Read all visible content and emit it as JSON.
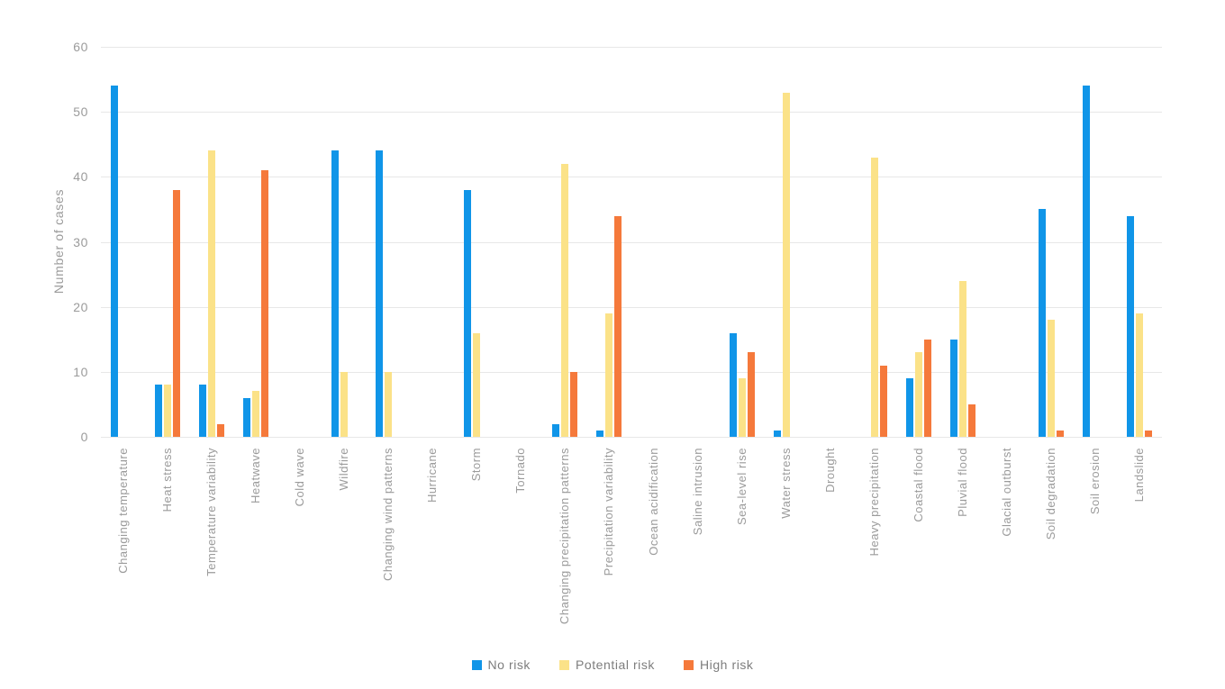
{
  "chart_data": {
    "type": "bar",
    "title": "",
    "xlabel": "",
    "ylabel": "Number of cases",
    "ylim": [
      0,
      60
    ],
    "yticks": [
      0,
      10,
      20,
      30,
      40,
      50,
      60
    ],
    "grid": true,
    "legend_position": "bottom",
    "categories": [
      "Changing temperature",
      "Heat stress",
      "Temperature variability",
      "Heatwave",
      "Cold wave",
      "Wildfire",
      "Changing wind patterns",
      "Hurricane",
      "Storm",
      "Tornado",
      "Changing precipitation patterns",
      "Precipitation variability",
      "Ocean acidification",
      "Saline intrusion",
      "Sea-level rise",
      "Water stress",
      "Drought",
      "Heavy precipitation",
      "Coastal flood",
      "Pluvial flood",
      "Glacial outburst",
      "Soil degradation",
      "Soil erosion",
      "Landslide"
    ],
    "series": [
      {
        "name": "No risk",
        "color": "#1095e8",
        "values": [
          54,
          8,
          8,
          6,
          0,
          44,
          44,
          0,
          38,
          0,
          2,
          1,
          0,
          0,
          16,
          1,
          0,
          0,
          9,
          15,
          0,
          35,
          54,
          34
        ]
      },
      {
        "name": "Potential risk",
        "color": "#fbe288",
        "values": [
          0,
          8,
          44,
          7,
          0,
          10,
          10,
          0,
          16,
          0,
          42,
          19,
          0,
          0,
          9,
          53,
          0,
          43,
          13,
          24,
          0,
          18,
          0,
          19
        ]
      },
      {
        "name": "High risk",
        "color": "#f5793b",
        "values": [
          0,
          38,
          2,
          41,
          0,
          0,
          0,
          0,
          0,
          0,
          10,
          34,
          0,
          0,
          13,
          0,
          0,
          11,
          15,
          5,
          0,
          1,
          0,
          1
        ]
      }
    ]
  },
  "style": {
    "gridline_color": "#e7e7e7",
    "axis_text_color": "#9b9b9b",
    "legend_text_color": "#7d7d7d",
    "background_color": "#ffffff"
  }
}
